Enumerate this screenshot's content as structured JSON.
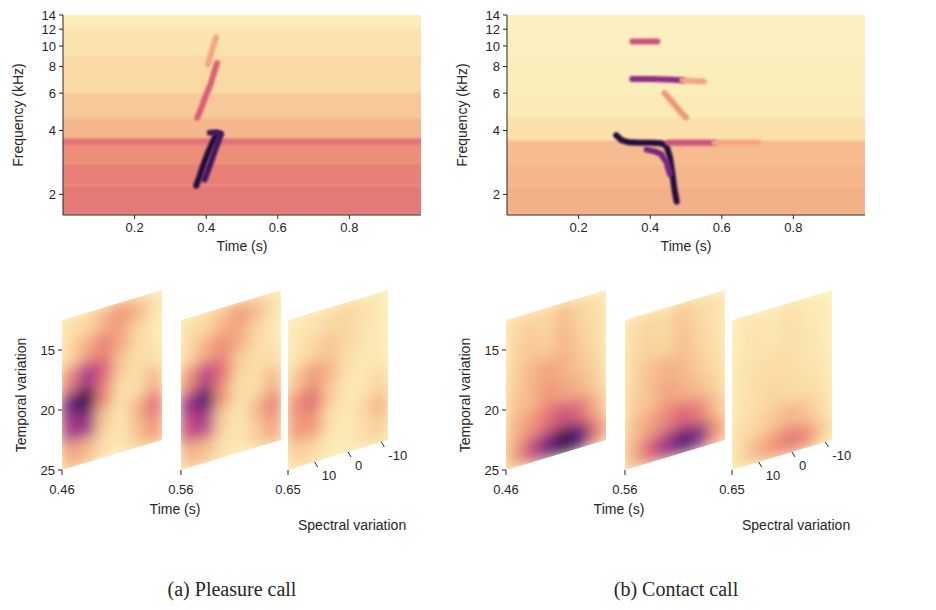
{
  "chart_data": [
    {
      "type": "spectrogram",
      "x_label": "Time (s)",
      "y_label": "Frequency (kHz)",
      "xlim": [
        0,
        1
      ],
      "xticks": [
        0.2,
        0.4,
        0.6,
        0.8
      ],
      "ylim": [
        1.6,
        14
      ],
      "yticks": [
        2,
        4,
        6,
        8,
        10,
        12,
        14
      ],
      "log": "y",
      "level_range": [
        0,
        1
      ],
      "band_edges": [
        1.6,
        2.2,
        2.8,
        3.6,
        4.6,
        6,
        9,
        12,
        14
      ],
      "band_levels": [
        0.48,
        0.46,
        0.42,
        0.3,
        0.24,
        0.18,
        0.12,
        0.08
      ],
      "series": [
        {
          "x": [
            0,
            1
          ],
          "values": [
            3.55,
            3.55
          ],
          "level": 0.5
        },
        {
          "x": [
            0.372,
            0.382,
            0.392,
            0.402,
            0.412,
            0.422,
            0.43
          ],
          "values": [
            2.2,
            2.45,
            2.75,
            3.05,
            3.35,
            3.65,
            3.9
          ],
          "level": 0.97
        },
        {
          "x": [
            0.395,
            0.405,
            0.415,
            0.425,
            0.435,
            0.44
          ],
          "values": [
            2.35,
            2.6,
            2.9,
            3.25,
            3.6,
            3.85
          ],
          "level": 0.9
        },
        {
          "x": [
            0.41,
            0.425,
            0.44
          ],
          "values": [
            3.9,
            3.9,
            3.85
          ],
          "level": 0.9
        },
        {
          "x": [
            0.375,
            0.388,
            0.4,
            0.412,
            0.422,
            0.43
          ],
          "values": [
            4.6,
            5.2,
            5.9,
            6.6,
            7.5,
            8.3
          ],
          "level": 0.55
        },
        {
          "x": [
            0.405,
            0.412,
            0.42,
            0.428
          ],
          "values": [
            8.2,
            9.0,
            10.0,
            11.0
          ],
          "level": 0.35
        }
      ]
    },
    {
      "type": "modulation",
      "title": "(a) Pleasure call",
      "x_label": "Time (s)",
      "y_label": "Temporal variation",
      "z_label": "Spectral variation",
      "xlim": [
        0.46,
        0.65
      ],
      "xticks": [
        0.46,
        0.56,
        0.65
      ],
      "ylim": [
        25,
        12.5
      ],
      "yticks": [
        15,
        20,
        25
      ],
      "zlim": [
        18,
        -12
      ],
      "zticks": [
        10,
        0,
        -10
      ],
      "level_range": [
        0,
        1
      ],
      "slices": [
        {
          "time": 0.46,
          "cells": [
            [
              0.15,
              0.2,
              0.3,
              0.4,
              0.3,
              0.15
            ],
            [
              0.2,
              0.35,
              0.45,
              0.35,
              0.2,
              0.1
            ],
            [
              0.45,
              0.7,
              0.55,
              0.25,
              0.15,
              0.15
            ],
            [
              0.8,
              0.95,
              0.45,
              0.15,
              0.15,
              0.3
            ],
            [
              0.7,
              0.75,
              0.25,
              0.1,
              0.3,
              0.5
            ],
            [
              0.35,
              0.3,
              0.15,
              0.1,
              0.25,
              0.4
            ]
          ]
        },
        {
          "time": 0.56,
          "cells": [
            [
              0.15,
              0.2,
              0.28,
              0.38,
              0.28,
              0.15
            ],
            [
              0.2,
              0.33,
              0.42,
              0.33,
              0.2,
              0.1
            ],
            [
              0.42,
              0.65,
              0.5,
              0.22,
              0.15,
              0.15
            ],
            [
              0.72,
              0.88,
              0.4,
              0.15,
              0.15,
              0.3
            ],
            [
              0.62,
              0.68,
              0.22,
              0.1,
              0.28,
              0.45
            ],
            [
              0.3,
              0.28,
              0.15,
              0.1,
              0.22,
              0.35
            ]
          ]
        },
        {
          "time": 0.65,
          "cells": [
            [
              0.1,
              0.12,
              0.18,
              0.2,
              0.15,
              0.1
            ],
            [
              0.12,
              0.2,
              0.25,
              0.2,
              0.12,
              0.08
            ],
            [
              0.25,
              0.38,
              0.3,
              0.15,
              0.1,
              0.1
            ],
            [
              0.42,
              0.5,
              0.25,
              0.1,
              0.1,
              0.2
            ],
            [
              0.38,
              0.4,
              0.15,
              0.08,
              0.18,
              0.3
            ],
            [
              0.22,
              0.2,
              0.1,
              0.08,
              0.15,
              0.22
            ]
          ]
        }
      ]
    },
    {
      "type": "spectrogram",
      "x_label": "Time (s)",
      "y_label": "Frequency (kHz)",
      "xlim": [
        0,
        1
      ],
      "xticks": [
        0.2,
        0.4,
        0.6,
        0.8
      ],
      "ylim": [
        1.6,
        14
      ],
      "yticks": [
        2,
        4,
        6,
        8,
        10,
        12,
        14
      ],
      "log": "y",
      "level_range": [
        0,
        1
      ],
      "band_edges": [
        1.6,
        2.2,
        2.8,
        3.6,
        4.6,
        6,
        9,
        12,
        14
      ],
      "band_levels": [
        0.32,
        0.3,
        0.28,
        0.14,
        0.08,
        0.06,
        0.05,
        0.04
      ],
      "series": [
        {
          "x": [
            0.305,
            0.32,
            0.34,
            0.37,
            0.4,
            0.43,
            0.445,
            0.455,
            0.462,
            0.468,
            0.474
          ],
          "values": [
            3.8,
            3.6,
            3.52,
            3.5,
            3.5,
            3.48,
            3.4,
            3.0,
            2.5,
            2.1,
            1.85
          ],
          "level": 0.97
        },
        {
          "x": [
            0.39,
            0.41,
            0.43,
            0.445,
            0.455
          ],
          "values": [
            3.25,
            3.2,
            3.1,
            2.85,
            2.5
          ],
          "level": 0.8
        },
        {
          "x": [
            0.45,
            0.5,
            0.55,
            0.58
          ],
          "values": [
            3.5,
            3.5,
            3.5,
            3.5
          ],
          "level": 0.6
        },
        {
          "x": [
            0.58,
            0.64,
            0.7
          ],
          "values": [
            3.5,
            3.5,
            3.5
          ],
          "level": 0.35
        },
        {
          "x": [
            0.35,
            0.4,
            0.45,
            0.49
          ],
          "values": [
            7.0,
            7.0,
            6.95,
            6.9
          ],
          "level": 0.75
        },
        {
          "x": [
            0.49,
            0.52,
            0.55
          ],
          "values": [
            6.9,
            6.85,
            6.8
          ],
          "level": 0.35
        },
        {
          "x": [
            0.44,
            0.46,
            0.48,
            0.5
          ],
          "values": [
            6.0,
            5.5,
            5.0,
            4.6
          ],
          "level": 0.4
        },
        {
          "x": [
            0.35,
            0.38,
            0.42
          ],
          "values": [
            10.5,
            10.5,
            10.5
          ],
          "level": 0.6
        }
      ]
    },
    {
      "type": "modulation",
      "title": "(b) Contact call",
      "x_label": "Time (s)",
      "y_label": "Temporal variation",
      "z_label": "Spectral variation",
      "xlim": [
        0.46,
        0.65
      ],
      "xticks": [
        0.46,
        0.56,
        0.65
      ],
      "ylim": [
        25,
        12.5
      ],
      "yticks": [
        15,
        20,
        25
      ],
      "zlim": [
        18,
        -12
      ],
      "zticks": [
        10,
        0,
        -10
      ],
      "level_range": [
        0,
        1
      ],
      "slices": [
        {
          "time": 0.46,
          "cells": [
            [
              0.18,
              0.22,
              0.2,
              0.28,
              0.2,
              0.15
            ],
            [
              0.2,
              0.25,
              0.22,
              0.3,
              0.22,
              0.15
            ],
            [
              0.22,
              0.3,
              0.35,
              0.32,
              0.25,
              0.18
            ],
            [
              0.25,
              0.3,
              0.4,
              0.35,
              0.3,
              0.22
            ],
            [
              0.3,
              0.4,
              0.5,
              0.6,
              0.5,
              0.3
            ],
            [
              0.35,
              0.6,
              0.8,
              0.95,
              0.85,
              0.45
            ]
          ]
        },
        {
          "time": 0.56,
          "cells": [
            [
              0.16,
              0.2,
              0.18,
              0.25,
              0.18,
              0.14
            ],
            [
              0.18,
              0.22,
              0.2,
              0.27,
              0.2,
              0.14
            ],
            [
              0.2,
              0.27,
              0.32,
              0.29,
              0.22,
              0.16
            ],
            [
              0.22,
              0.27,
              0.36,
              0.32,
              0.27,
              0.2
            ],
            [
              0.27,
              0.36,
              0.45,
              0.54,
              0.45,
              0.27
            ],
            [
              0.32,
              0.54,
              0.72,
              0.86,
              0.76,
              0.4
            ]
          ]
        },
        {
          "time": 0.65,
          "cells": [
            [
              0.1,
              0.12,
              0.1,
              0.15,
              0.1,
              0.08
            ],
            [
              0.1,
              0.12,
              0.12,
              0.15,
              0.12,
              0.08
            ],
            [
              0.12,
              0.15,
              0.18,
              0.16,
              0.12,
              0.1
            ],
            [
              0.12,
              0.15,
              0.2,
              0.18,
              0.15,
              0.12
            ],
            [
              0.15,
              0.2,
              0.25,
              0.3,
              0.25,
              0.15
            ],
            [
              0.18,
              0.3,
              0.4,
              0.48,
              0.42,
              0.22
            ]
          ]
        }
      ]
    }
  ]
}
